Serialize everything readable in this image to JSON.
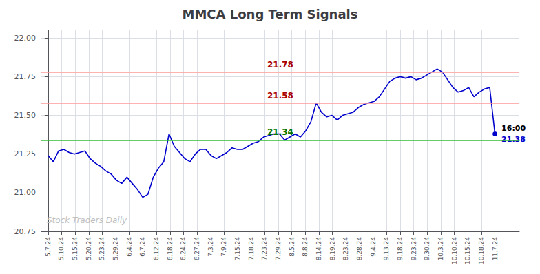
{
  "chart_data": {
    "type": "line",
    "title": "MMCA Long Term Signals",
    "color": "#0000cc",
    "grid": true,
    "x": [
      0,
      0.3882,
      0.7765,
      1.1647,
      1.5529,
      1.9412,
      2.3294,
      2.7176,
      3.1059,
      3.4941,
      3.8824,
      4.2706,
      4.6588,
      5.0471,
      5.4353,
      5.8235,
      6.2118,
      6.6,
      6.9882,
      7.3765,
      7.7647,
      8.1529,
      8.5412,
      8.9294,
      9.3176,
      9.7059,
      10.0941,
      10.4824,
      10.8706,
      11.2588,
      11.6471,
      12.0353,
      12.4235,
      12.8118,
      13.2,
      13.5882,
      13.9765,
      14.3647,
      14.7529,
      15.1412,
      15.5294,
      15.9176,
      16.3059,
      16.6941,
      17.0824,
      17.4706,
      17.8588,
      18.2471,
      18.6353,
      19.0235,
      19.4118,
      19.8,
      20.1882,
      20.5765,
      20.9647,
      21.3529,
      21.7412,
      22.1294,
      22.5176,
      22.9059,
      23.2941,
      23.6824,
      24.0706,
      24.4588,
      24.8471,
      25.2353,
      25.6235,
      26.0118,
      26.4,
      26.7882,
      27.1765,
      27.5647,
      27.9529,
      28.3412,
      28.7294,
      29.1176,
      29.5059,
      29.8941,
      30.2824,
      30.6706,
      31.0588,
      31.4471,
      31.8353,
      32.2235,
      32.6118,
      33
    ],
    "values": [
      21.24,
      21.2,
      21.27,
      21.28,
      21.26,
      21.25,
      21.26,
      21.27,
      21.22,
      21.19,
      21.17,
      21.14,
      21.12,
      21.08,
      21.06,
      21.1,
      21.06,
      21.02,
      20.97,
      20.99,
      21.1,
      21.16,
      21.2,
      21.38,
      21.3,
      21.26,
      21.22,
      21.2,
      21.25,
      21.28,
      21.28,
      21.24,
      21.22,
      21.24,
      21.26,
      21.29,
      21.28,
      21.28,
      21.3,
      21.32,
      21.33,
      21.36,
      21.37,
      21.38,
      21.38,
      21.34,
      21.36,
      21.38,
      21.36,
      21.4,
      21.46,
      21.58,
      21.52,
      21.49,
      21.5,
      21.47,
      21.5,
      21.51,
      21.52,
      21.55,
      21.57,
      21.58,
      21.59,
      21.62,
      21.67,
      21.72,
      21.74,
      21.75,
      21.74,
      21.75,
      21.73,
      21.74,
      21.76,
      21.78,
      21.8,
      21.78,
      21.73,
      21.68,
      21.65,
      21.66,
      21.68,
      21.62,
      21.65,
      21.67,
      21.68,
      21.38
    ],
    "xlim": [
      -0.5,
      34.8
    ],
    "xticks": [
      {
        "value": 0,
        "label": "5.7.24"
      },
      {
        "value": 1,
        "label": "5.10.24"
      },
      {
        "value": 2,
        "label": "5.15.24"
      },
      {
        "value": 3,
        "label": "5.20.24"
      },
      {
        "value": 4,
        "label": "5.23.24"
      },
      {
        "value": 5,
        "label": "5.29.24"
      },
      {
        "value": 6,
        "label": "6.4.24"
      },
      {
        "value": 7,
        "label": "6.7.24"
      },
      {
        "value": 8,
        "label": "6.12.24"
      },
      {
        "value": 9,
        "label": "6.18.24"
      },
      {
        "value": 10,
        "label": "6.24.24"
      },
      {
        "value": 11,
        "label": "6.27.24"
      },
      {
        "value": 12,
        "label": "7.3.24"
      },
      {
        "value": 13,
        "label": "7.9.24"
      },
      {
        "value": 14,
        "label": "7.15.24"
      },
      {
        "value": 15,
        "label": "7.18.24"
      },
      {
        "value": 16,
        "label": "7.23.24"
      },
      {
        "value": 17,
        "label": "7.29.24"
      },
      {
        "value": 18,
        "label": "8.5.24"
      },
      {
        "value": 19,
        "label": "8.8.24"
      },
      {
        "value": 20,
        "label": "8.14.24"
      },
      {
        "value": 21,
        "label": "8.19.24"
      },
      {
        "value": 22,
        "label": "8.23.24"
      },
      {
        "value": 23,
        "label": "8.28.24"
      },
      {
        "value": 24,
        "label": "9.4.24"
      },
      {
        "value": 25,
        "label": "9.13.24"
      },
      {
        "value": 26,
        "label": "9.18.24"
      },
      {
        "value": 27,
        "label": "9.23.24"
      },
      {
        "value": 28,
        "label": "9.30.24"
      },
      {
        "value": 29,
        "label": "10.3.24"
      },
      {
        "value": 30,
        "label": "10.10.24"
      },
      {
        "value": 31,
        "label": "10.15.24"
      },
      {
        "value": 32,
        "label": "10.18.24"
      },
      {
        "value": 33,
        "label": "11.7.24"
      }
    ],
    "ylim": [
      20.75,
      22.05
    ],
    "yticks": [
      20.75,
      {
        "value": 21.0,
        "label": "21.00"
      },
      21.25,
      {
        "value": 21.5,
        "label": "21.50"
      },
      21.75,
      {
        "value": 22.0,
        "label": "22.00"
      }
    ],
    "reference_lines": [
      {
        "y": 21.34,
        "label": "21.34",
        "color": "#33bb33",
        "label_color": "#007700"
      },
      {
        "y": 21.58,
        "label": "21.58",
        "color": "#ff9999",
        "label_color": "#aa0000"
      },
      {
        "y": 21.78,
        "label": "21.78",
        "color": "#ff9999",
        "label_color": "#aa0000"
      }
    ],
    "end_annotation": "16:00",
    "watermark": "Stock Traders Daily"
  }
}
